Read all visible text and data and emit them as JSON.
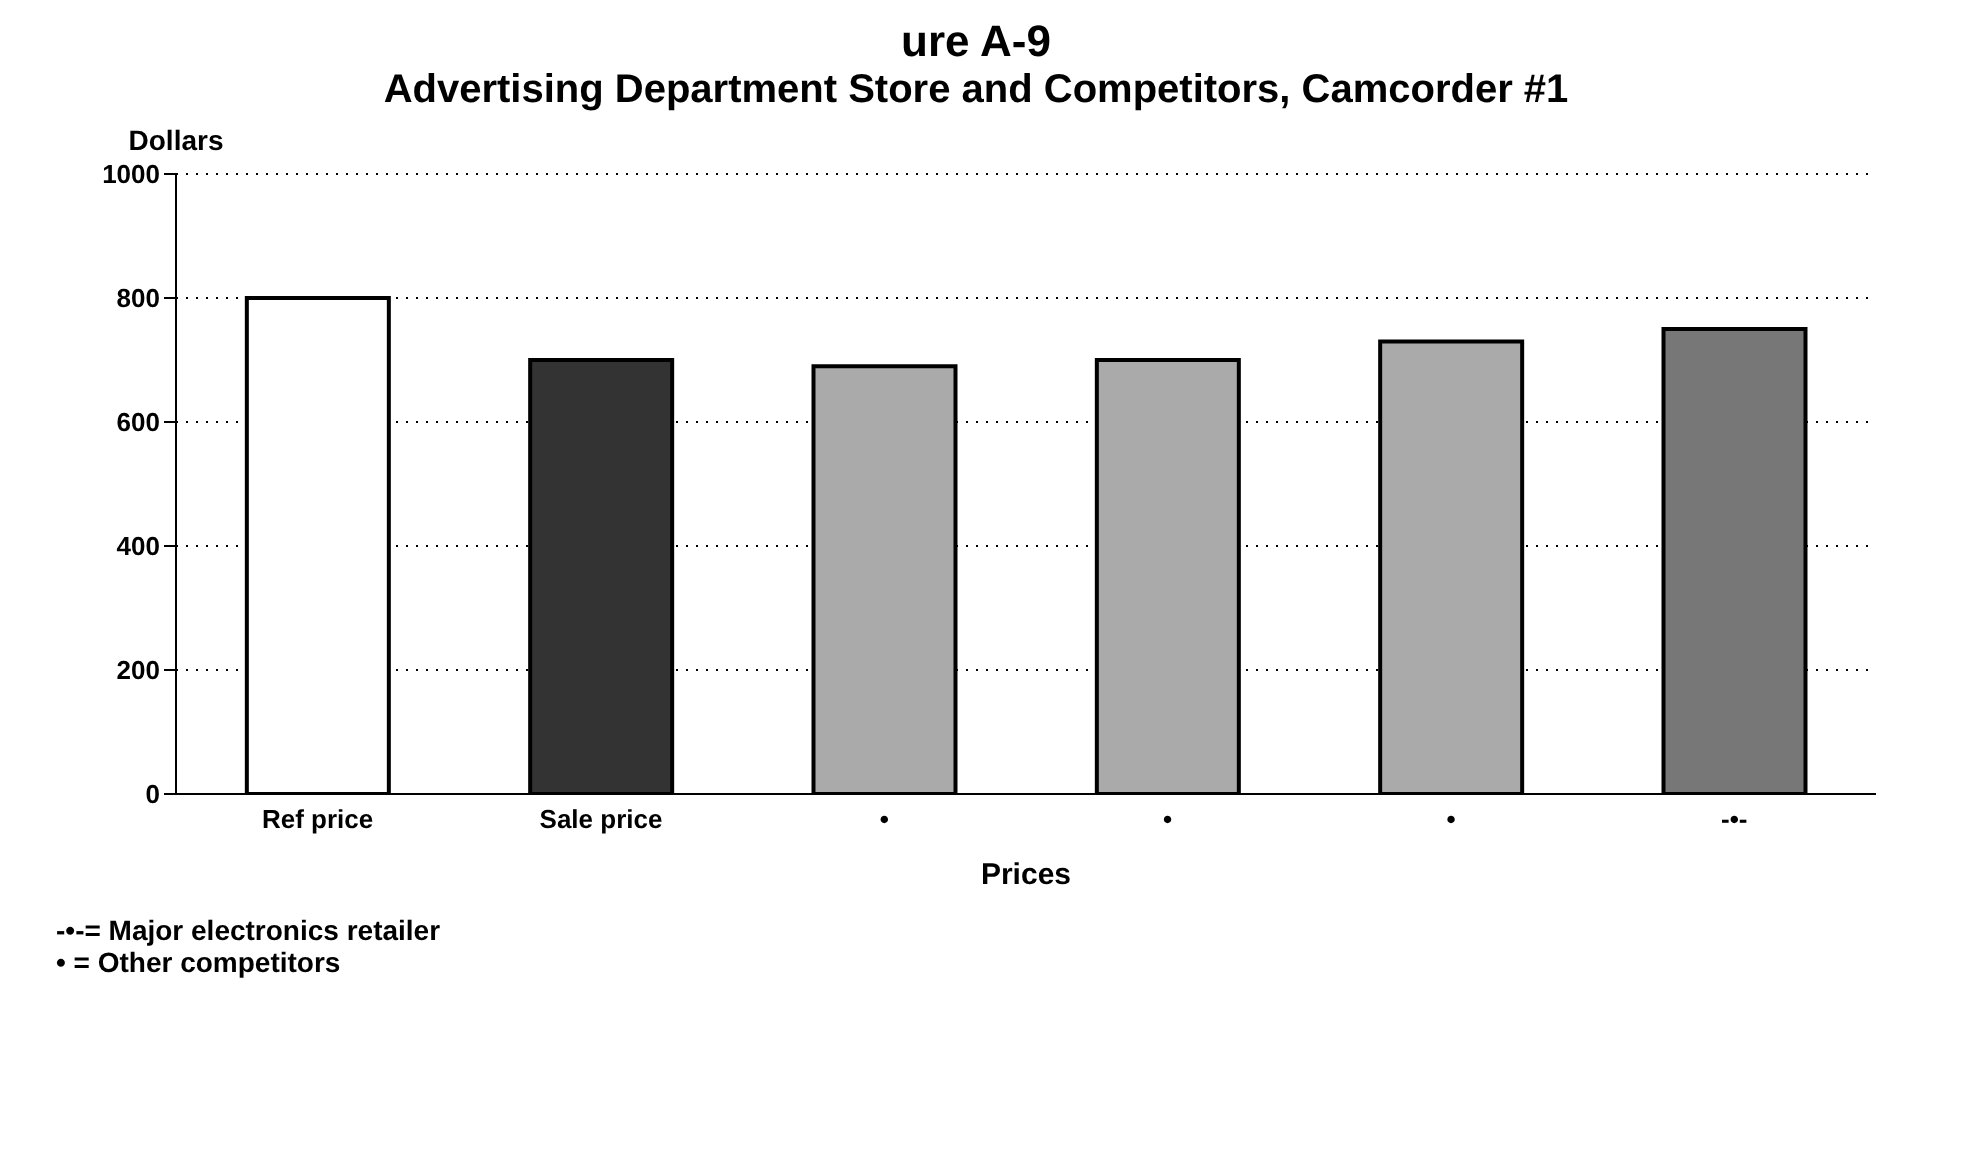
{
  "chart_data": {
    "type": "bar",
    "title": "ure A-9",
    "subtitle": "Advertising Department Store and Competitors, Camcorder #1",
    "ylabel": "Dollars",
    "xlabel": "Prices",
    "categories": [
      "Ref price",
      "Sale price",
      "•",
      "•",
      "•",
      "-•-"
    ],
    "values": [
      800,
      700,
      690,
      700,
      730,
      750
    ],
    "colors": [
      "#ffffff",
      "#333333",
      "#aaaaaa",
      "#aaaaaa",
      "#aaaaaa",
      "#777777"
    ],
    "ylim": [
      0,
      1000
    ],
    "yticks": [
      0,
      200,
      400,
      600,
      800,
      1000
    ],
    "grid": "y",
    "annotations": [
      "-•-= Major electronics retailer",
      "• = Other competitors"
    ]
  }
}
